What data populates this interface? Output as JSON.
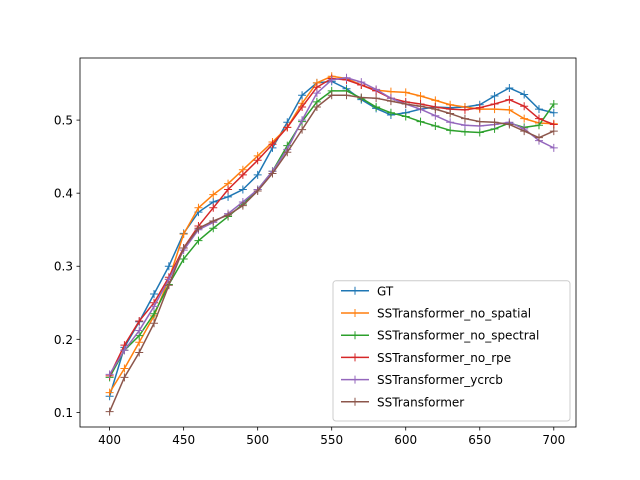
{
  "chart_data": {
    "type": "line",
    "xlim": [
      380,
      715
    ],
    "ylim": [
      0.08,
      0.585
    ],
    "xticks": [
      400,
      450,
      500,
      550,
      600,
      650,
      700
    ],
    "yticks": [
      0.1,
      0.2,
      0.3,
      0.4,
      0.5
    ],
    "x": [
      400,
      410,
      420,
      430,
      440,
      450,
      460,
      470,
      480,
      490,
      500,
      510,
      520,
      530,
      540,
      550,
      560,
      570,
      580,
      590,
      600,
      610,
      620,
      630,
      640,
      650,
      660,
      670,
      680,
      690,
      700
    ],
    "legend_position": "lower right",
    "series": [
      {
        "name": "GT",
        "color": "#1f77b4",
        "values": [
          0.122,
          0.189,
          0.224,
          0.262,
          0.3,
          0.345,
          0.374,
          0.388,
          0.395,
          0.405,
          0.425,
          0.462,
          0.497,
          0.534,
          0.551,
          0.553,
          0.543,
          0.528,
          0.516,
          0.507,
          0.51,
          0.515,
          0.518,
          0.517,
          0.518,
          0.521,
          0.533,
          0.544,
          0.535,
          0.515,
          0.51
        ]
      },
      {
        "name": "SSTransformer_no_spatial",
        "color": "#ff7f0e",
        "values": [
          0.127,
          0.16,
          0.196,
          0.232,
          0.282,
          0.344,
          0.38,
          0.398,
          0.413,
          0.432,
          0.451,
          0.47,
          0.49,
          0.523,
          0.551,
          0.56,
          0.557,
          0.548,
          0.541,
          0.539,
          0.538,
          0.533,
          0.527,
          0.521,
          0.518,
          0.515,
          0.515,
          0.514,
          0.502,
          0.496,
          0.495
        ]
      },
      {
        "name": "SSTransformer_no_spectral",
        "color": "#2ca02c",
        "values": [
          0.148,
          0.185,
          0.205,
          0.235,
          0.275,
          0.31,
          0.335,
          0.352,
          0.368,
          0.385,
          0.405,
          0.43,
          0.465,
          0.498,
          0.525,
          0.54,
          0.54,
          0.53,
          0.518,
          0.51,
          0.505,
          0.498,
          0.492,
          0.486,
          0.484,
          0.483,
          0.488,
          0.496,
          0.49,
          0.493,
          0.522
        ]
      },
      {
        "name": "SSTransformer_no_rpe",
        "color": "#d62728",
        "values": [
          0.15,
          0.192,
          0.225,
          0.25,
          0.285,
          0.325,
          0.355,
          0.38,
          0.405,
          0.425,
          0.445,
          0.467,
          0.49,
          0.518,
          0.545,
          0.557,
          0.555,
          0.548,
          0.54,
          0.53,
          0.525,
          0.522,
          0.518,
          0.515,
          0.514,
          0.517,
          0.522,
          0.528,
          0.519,
          0.502,
          0.494
        ]
      },
      {
        "name": "SSTransformer_ycrcb",
        "color": "#9467bd",
        "values": [
          0.152,
          0.185,
          0.212,
          0.245,
          0.282,
          0.322,
          0.35,
          0.36,
          0.372,
          0.388,
          0.405,
          0.43,
          0.46,
          0.5,
          0.537,
          0.555,
          0.558,
          0.552,
          0.542,
          0.53,
          0.522,
          0.515,
          0.506,
          0.497,
          0.493,
          0.492,
          0.494,
          0.497,
          0.488,
          0.472,
          0.462
        ]
      },
      {
        "name": "SSTransformer",
        "color": "#8c564b",
        "values": [
          0.101,
          0.148,
          0.182,
          0.222,
          0.274,
          0.325,
          0.352,
          0.362,
          0.37,
          0.383,
          0.403,
          0.427,
          0.456,
          0.487,
          0.518,
          0.534,
          0.534,
          0.531,
          0.53,
          0.526,
          0.522,
          0.519,
          0.515,
          0.509,
          0.502,
          0.498,
          0.497,
          0.494,
          0.485,
          0.476,
          0.485
        ]
      }
    ]
  }
}
